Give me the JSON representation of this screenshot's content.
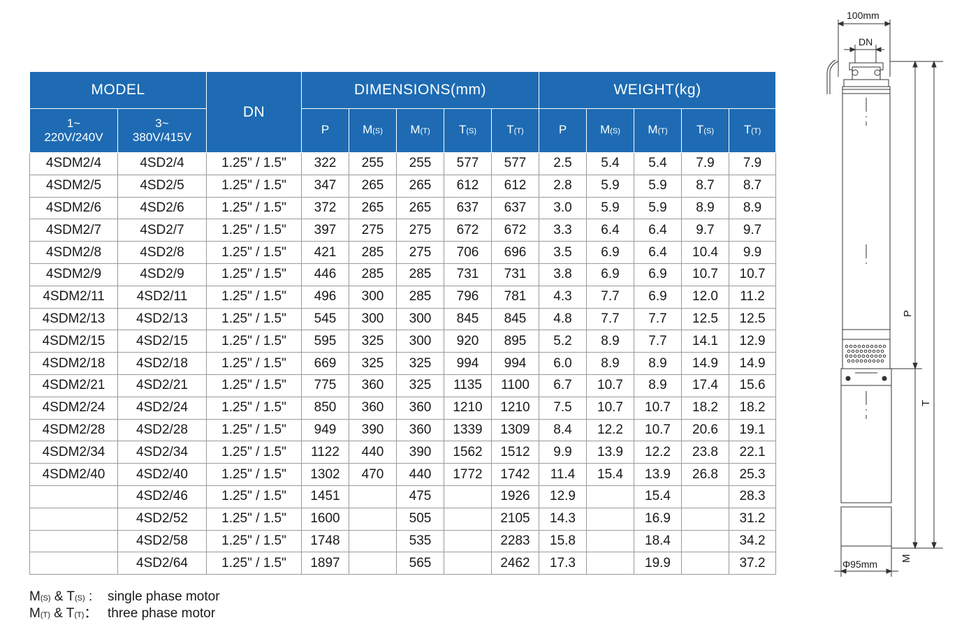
{
  "table": {
    "groups": {
      "model": "MODEL",
      "dn": "DN",
      "dimensions": "DIMENSIONS(mm)",
      "weight": "WEIGHT(kg)"
    },
    "model_cols": {
      "single": [
        "1~",
        "220V/240V"
      ],
      "three": [
        "3~",
        "380V/415V"
      ]
    },
    "sub_cols": [
      {
        "main": "P",
        "sub": ""
      },
      {
        "main": "M",
        "sub": "(S)"
      },
      {
        "main": "M",
        "sub": "(T)"
      },
      {
        "main": "T",
        "sub": "(S)"
      },
      {
        "main": "T",
        "sub": "(T)"
      }
    ],
    "rows": [
      [
        "4SDM2/4",
        "4SD2/4",
        "1.25\" / 1.5\"",
        "322",
        "255",
        "255",
        "577",
        "577",
        "2.5",
        "5.4",
        "5.4",
        "7.9",
        "7.9"
      ],
      [
        "4SDM2/5",
        "4SD2/5",
        "1.25\" / 1.5\"",
        "347",
        "265",
        "265",
        "612",
        "612",
        "2.8",
        "5.9",
        "5.9",
        "8.7",
        "8.7"
      ],
      [
        "4SDM2/6",
        "4SD2/6",
        "1.25\" / 1.5\"",
        "372",
        "265",
        "265",
        "637",
        "637",
        "3.0",
        "5.9",
        "5.9",
        "8.9",
        "8.9"
      ],
      [
        "4SDM2/7",
        "4SD2/7",
        "1.25\" / 1.5\"",
        "397",
        "275",
        "275",
        "672",
        "672",
        "3.3",
        "6.4",
        "6.4",
        "9.7",
        "9.7"
      ],
      [
        "4SDM2/8",
        "4SD2/8",
        "1.25\" / 1.5\"",
        "421",
        "285",
        "275",
        "706",
        "696",
        "3.5",
        "6.9",
        "6.4",
        "10.4",
        "9.9"
      ],
      [
        "4SDM2/9",
        "4SD2/9",
        "1.25\" / 1.5\"",
        "446",
        "285",
        "285",
        "731",
        "731",
        "3.8",
        "6.9",
        "6.9",
        "10.7",
        "10.7"
      ],
      [
        "4SDM2/11",
        "4SD2/11",
        "1.25\" / 1.5\"",
        "496",
        "300",
        "285",
        "796",
        "781",
        "4.3",
        "7.7",
        "6.9",
        "12.0",
        "11.2"
      ],
      [
        "4SDM2/13",
        "4SD2/13",
        "1.25\" / 1.5\"",
        "545",
        "300",
        "300",
        "845",
        "845",
        "4.8",
        "7.7",
        "7.7",
        "12.5",
        "12.5"
      ],
      [
        "4SDM2/15",
        "4SD2/15",
        "1.25\" / 1.5\"",
        "595",
        "325",
        "300",
        "920",
        "895",
        "5.2",
        "8.9",
        "7.7",
        "14.1",
        "12.9"
      ],
      [
        "4SDM2/18",
        "4SD2/18",
        "1.25\" / 1.5\"",
        "669",
        "325",
        "325",
        "994",
        "994",
        "6.0",
        "8.9",
        "8.9",
        "14.9",
        "14.9"
      ],
      [
        "4SDM2/21",
        "4SD2/21",
        "1.25\" / 1.5\"",
        "775",
        "360",
        "325",
        "1135",
        "1100",
        "6.7",
        "10.7",
        "8.9",
        "17.4",
        "15.6"
      ],
      [
        "4SDM2/24",
        "4SD2/24",
        "1.25\" / 1.5\"",
        "850",
        "360",
        "360",
        "1210",
        "1210",
        "7.5",
        "10.7",
        "10.7",
        "18.2",
        "18.2"
      ],
      [
        "4SDM2/28",
        "4SD2/28",
        "1.25\" / 1.5\"",
        "949",
        "390",
        "360",
        "1339",
        "1309",
        "8.4",
        "12.2",
        "10.7",
        "20.6",
        "19.1"
      ],
      [
        "4SDM2/34",
        "4SD2/34",
        "1.25\" / 1.5\"",
        "1122",
        "440",
        "390",
        "1562",
        "1512",
        "9.9",
        "13.9",
        "12.2",
        "23.8",
        "22.1"
      ],
      [
        "4SDM2/40",
        "4SD2/40",
        "1.25\" / 1.5\"",
        "1302",
        "470",
        "440",
        "1772",
        "1742",
        "11.4",
        "15.4",
        "13.9",
        "26.8",
        "25.3"
      ],
      [
        "",
        "4SD2/46",
        "1.25\" / 1.5\"",
        "1451",
        "",
        "475",
        "",
        "1926",
        "12.9",
        "",
        "15.4",
        "",
        "28.3"
      ],
      [
        "",
        "4SD2/52",
        "1.25\" / 1.5\"",
        "1600",
        "",
        "505",
        "",
        "2105",
        "14.3",
        "",
        "16.9",
        "",
        "31.2"
      ],
      [
        "",
        "4SD2/58",
        "1.25\" / 1.5\"",
        "1748",
        "",
        "535",
        "",
        "2283",
        "15.8",
        "",
        "18.4",
        "",
        "34.2"
      ],
      [
        "",
        "4SD2/64",
        "1.25\" / 1.5\"",
        "1897",
        "",
        "565",
        "",
        "2462",
        "17.3",
        "",
        "19.9",
        "",
        "37.2"
      ]
    ]
  },
  "legend": [
    {
      "m": "M",
      "m_sub": "(S)",
      "amp": " & ",
      "t": "T",
      "t_sub": "(S)",
      "sep": " : ",
      "text": "single phase motor"
    },
    {
      "m": "M",
      "m_sub": "(T)",
      "amp": " & ",
      "t": "T",
      "t_sub": "(T)",
      "sep": "：",
      "text": "three phase motor"
    }
  ],
  "drawing": {
    "width_label": "100mm",
    "dn_label": "DN",
    "p_label": "P",
    "t_label": "T",
    "m_label": "M",
    "diameter_label": "Φ95mm"
  },
  "colors": {
    "header_bg": "#1e6bb3",
    "header_text": "#ffffff",
    "grid": "#9a9a9a"
  }
}
